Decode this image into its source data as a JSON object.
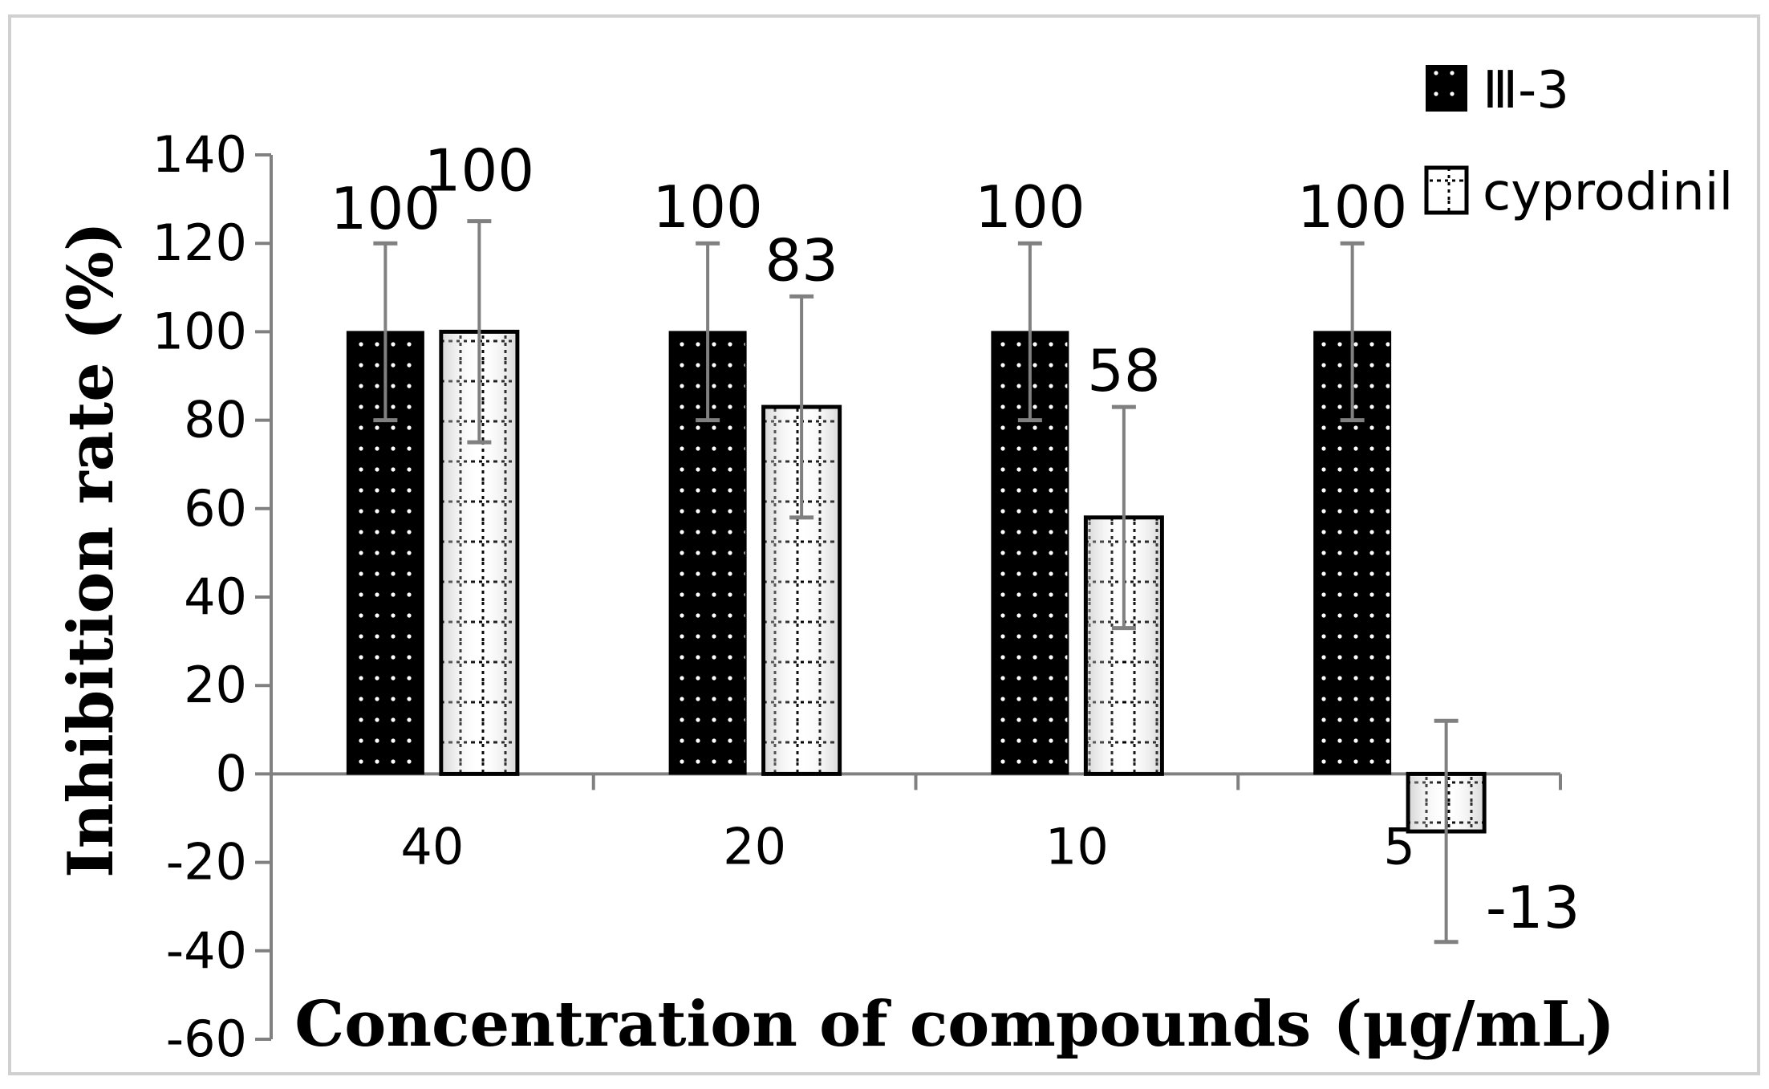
{
  "chart_data": {
    "type": "bar",
    "title": "",
    "xlabel": "Concentration of compounds (μg/mL)",
    "ylabel": "Inhibition rate (%)",
    "categories": [
      "40",
      "20",
      "10",
      "5"
    ],
    "ylim": [
      -60,
      140
    ],
    "yticks": [
      140,
      120,
      100,
      80,
      60,
      40,
      20,
      0,
      -20,
      -40,
      -60
    ],
    "ytick_labels": [
      "140",
      "120",
      "100",
      "80",
      "60",
      "40",
      "20",
      "0",
      "-20",
      "-40",
      "-60"
    ],
    "grid": false,
    "legend_position": "top-right",
    "series": [
      {
        "name": "Ⅲ-3",
        "values": [
          100,
          100,
          100,
          100
        ],
        "error": [
          20,
          20,
          20,
          20
        ],
        "labels": [
          "100",
          "100",
          "100",
          "100"
        ],
        "fill_color": "#000000",
        "pattern": "dots"
      },
      {
        "name": "cyprodinil",
        "values": [
          100,
          83,
          58,
          -13
        ],
        "error": [
          25,
          25,
          25,
          25
        ],
        "labels": [
          "100",
          "83",
          "58",
          "-13"
        ],
        "fill_color": "#ffffff",
        "pattern": "dotted-grid"
      }
    ]
  }
}
